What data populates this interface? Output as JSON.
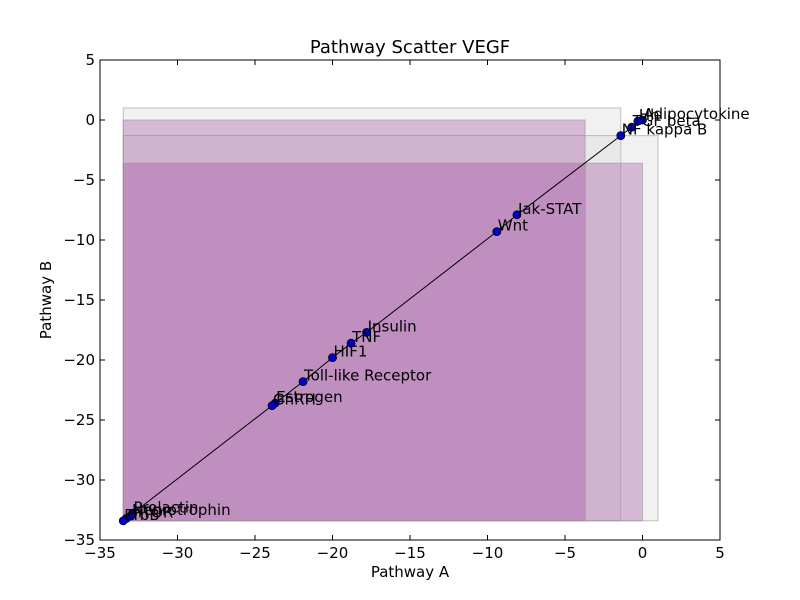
{
  "chart_data": {
    "type": "scatter",
    "title": "Pathway Scatter VEGF",
    "xlabel": "Pathway A",
    "ylabel": "Pathway B",
    "xlim": [
      -35,
      5
    ],
    "ylim": [
      -35,
      5
    ],
    "xticks": [
      -35,
      -30,
      -25,
      -20,
      -15,
      -10,
      -5,
      0,
      5
    ],
    "yticks": [
      5,
      0,
      -5,
      -10,
      -15,
      -20,
      -25,
      -30,
      -35
    ],
    "grid": false,
    "points": [
      {
        "label": "Adipocytokine",
        "x": 0.0,
        "y": 0.0
      },
      {
        "label": "Hh",
        "x": -0.3,
        "y": -0.1
      },
      {
        "label": "TGF beta",
        "x": -0.7,
        "y": -0.6
      },
      {
        "label": "NF kappa B",
        "x": -1.4,
        "y": -1.3
      },
      {
        "label": "Jak-STAT",
        "x": -8.1,
        "y": -7.9
      },
      {
        "label": "Wnt",
        "x": -9.4,
        "y": -9.3
      },
      {
        "label": "Insulin",
        "x": -17.8,
        "y": -17.7
      },
      {
        "label": "TNF",
        "x": -18.8,
        "y": -18.6
      },
      {
        "label": "HIF1",
        "x": -20.0,
        "y": -19.8
      },
      {
        "label": "Toll-like Receptor",
        "x": -21.9,
        "y": -21.8
      },
      {
        "label": "Estrogen",
        "x": -23.7,
        "y": -23.6
      },
      {
        "label": "GnRH",
        "x": -23.9,
        "y": -23.8
      },
      {
        "label": "Prolactin",
        "x": -32.9,
        "y": -32.8
      },
      {
        "label": "Neurotrophin",
        "x": -33.0,
        "y": -33.0
      },
      {
        "label": "mTOR",
        "x": -33.3,
        "y": -33.2
      },
      {
        "label": "ErbB",
        "x": -33.5,
        "y": -33.4
      }
    ],
    "rects": [
      {
        "x0": -33.5,
        "x1": -1.4,
        "y0": -33.4,
        "y1": 1.0,
        "fill": "#d8d8d8",
        "opacity": 0.35
      },
      {
        "x0": -33.5,
        "x1": 1.0,
        "y0": -33.4,
        "y1": -1.3,
        "fill": "#d8d8d8",
        "opacity": 0.35
      },
      {
        "x0": -33.5,
        "x1": -3.7,
        "y0": -33.4,
        "y1": 0.0,
        "fill": "#a050a0",
        "opacity": 0.35
      },
      {
        "x0": -33.5,
        "x1": 0.0,
        "y0": -33.4,
        "y1": -3.6,
        "fill": "#a050a0",
        "opacity": 0.35
      }
    ],
    "colors": {
      "marker": "#0000cc",
      "line": "#000000",
      "axis": "#000000"
    }
  }
}
